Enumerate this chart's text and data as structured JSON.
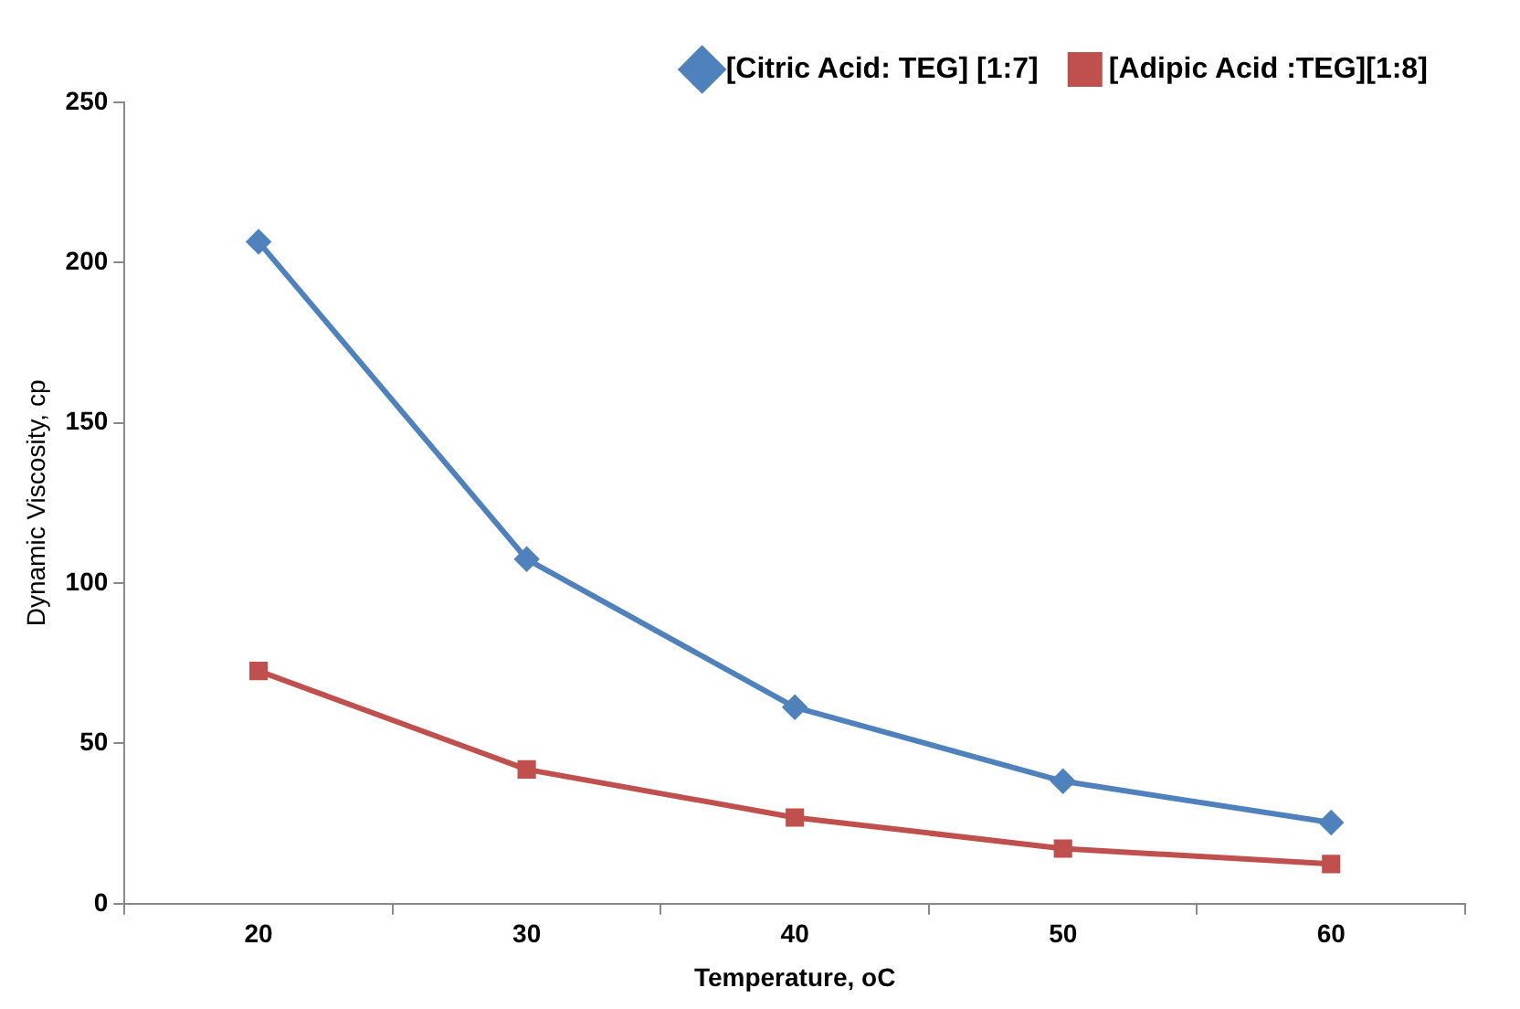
{
  "chart_data": {
    "type": "line",
    "xlabel": "Temperature, oC",
    "ylabel": "Dynamic Viscosity, cp",
    "categories": [
      "20",
      "30",
      "40",
      "50",
      "60"
    ],
    "series": [
      {
        "name": "[Citric Acid: TEG] [1:7]",
        "color": "#4f81bd",
        "marker": "diamond",
        "values": [
          206.5,
          107.5,
          61.3,
          38.2,
          25.3
        ]
      },
      {
        "name": "[Adipic Acid :TEG][1:8]",
        "color": "#c0504d",
        "marker": "square",
        "values": [
          72.6,
          41.9,
          26.9,
          17.2,
          12.4
        ]
      }
    ],
    "ylim": [
      0,
      250
    ],
    "yticks": [
      0,
      50,
      100,
      150,
      200,
      250
    ],
    "grid": false,
    "legend": "top right",
    "line_style": "solid"
  }
}
